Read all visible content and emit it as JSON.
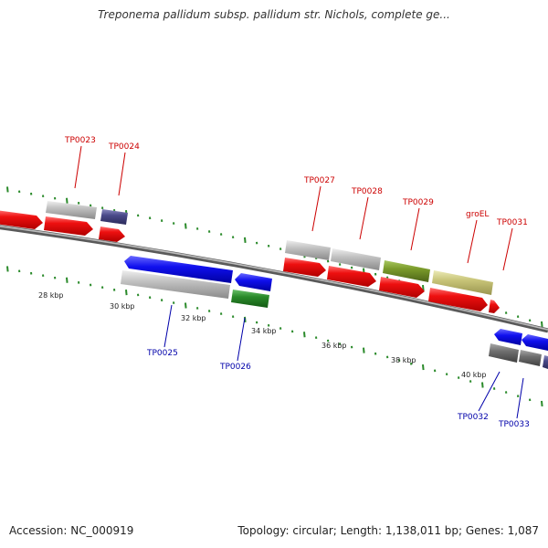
{
  "title": "Treponema pallidum subsp. pallidum str. Nichols, complete ge...",
  "footer": {
    "accession": "Accession: NC_000919",
    "summary": "Topology: circular; Length: 1,138,011 bp; Genes: 1,087"
  },
  "scale_labels": [
    "28 kbp",
    "30 kbp",
    "32 kbp",
    "34 kbp",
    "36 kbp",
    "38 kbp",
    "40 kbp"
  ],
  "gene_labels": {
    "forward": [
      "TP0023",
      "TP0024",
      "TP0027",
      "TP0028",
      "TP0029",
      "groEL",
      "TP0031"
    ],
    "reverse": [
      "TP0025",
      "TP0026",
      "TP0032",
      "TP0033"
    ]
  },
  "colors": {
    "forward_label": "#cc0000",
    "reverse_label": "#0000aa",
    "cds_red": "#e8121a",
    "gene_grey": "#b8b8b8",
    "gene_blue": "#1a1aee",
    "gene_green": "#2e8b2e",
    "gene_olive": "#7a9a2a",
    "gene_khaki": "#c8c478",
    "gene_purple": "#4a4a8a",
    "gene_dark_grey": "#707070",
    "tick_green": "#2a8a2a",
    "backbone": "#8a8a8a"
  }
}
